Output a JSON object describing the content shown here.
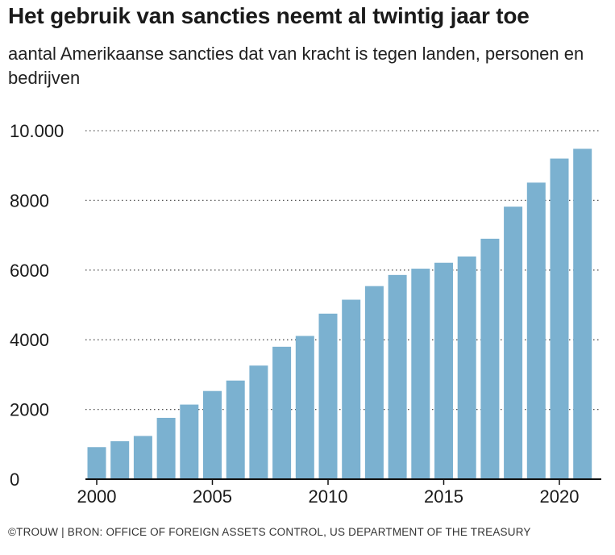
{
  "chart_data": {
    "type": "bar",
    "title": "Het gebruik van sancties neemt al twintig jaar toe",
    "subtitle": "aantal Amerikaanse sancties dat van kracht is tegen landen, personen en bedrijven",
    "x": [
      2000,
      2001,
      2002,
      2003,
      2004,
      2005,
      2006,
      2007,
      2008,
      2009,
      2010,
      2011,
      2012,
      2013,
      2014,
      2015,
      2016,
      2017,
      2018,
      2019,
      2020,
      2021
    ],
    "values": [
      920,
      1090,
      1240,
      1760,
      2140,
      2530,
      2830,
      3260,
      3800,
      4110,
      4750,
      5150,
      5540,
      5860,
      6040,
      6210,
      6390,
      6900,
      7820,
      8510,
      9200,
      9480
    ],
    "x_tick_labels": [
      "2000",
      "2005",
      "2010",
      "2015",
      "2020"
    ],
    "x_tick_values": [
      2000,
      2005,
      2010,
      2015,
      2020
    ],
    "y_tick_labels": [
      "0",
      "2000",
      "4000",
      "6000",
      "8000",
      "10.000"
    ],
    "y_tick_values": [
      0,
      2000,
      4000,
      6000,
      8000,
      10000
    ],
    "ylim": [
      0,
      10000
    ],
    "xlabel": "",
    "ylabel": "",
    "grid": "horizontal dotted",
    "legend": "none",
    "bar_color": "#7bb1d0",
    "source": "©TROUW | BRON: OFFICE OF FOREIGN ASSETS CONTROL, US DEPARTMENT OF THE TREASURY"
  }
}
